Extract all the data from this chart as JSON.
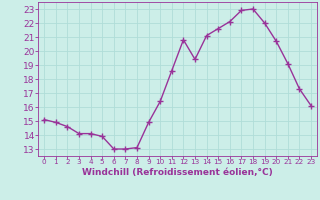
{
  "x": [
    0,
    1,
    2,
    3,
    4,
    5,
    6,
    7,
    8,
    9,
    10,
    11,
    12,
    13,
    14,
    15,
    16,
    17,
    18,
    19,
    20,
    21,
    22,
    23
  ],
  "y": [
    15.1,
    14.9,
    14.6,
    14.1,
    14.1,
    13.9,
    13.0,
    13.0,
    13.1,
    14.9,
    16.4,
    18.6,
    20.8,
    19.4,
    21.1,
    21.6,
    22.1,
    22.9,
    23.0,
    22.0,
    20.7,
    19.1,
    17.3,
    16.1
  ],
  "line_color": "#993399",
  "marker": "+",
  "marker_size": 4,
  "marker_linewidth": 1.0,
  "xlabel": "Windchill (Refroidissement éolien,°C)",
  "xlabel_fontsize": 6.5,
  "ylim": [
    12.5,
    23.5
  ],
  "xlim": [
    -0.5,
    23.5
  ],
  "yticks": [
    13,
    14,
    15,
    16,
    17,
    18,
    19,
    20,
    21,
    22,
    23
  ],
  "xticks": [
    0,
    1,
    2,
    3,
    4,
    5,
    6,
    7,
    8,
    9,
    10,
    11,
    12,
    13,
    14,
    15,
    16,
    17,
    18,
    19,
    20,
    21,
    22,
    23
  ],
  "grid_color": "#b0ddd8",
  "bg_color": "#cceee8",
  "tick_color": "#993399",
  "ytick_fontsize": 6.5,
  "xtick_fontsize": 5.2,
  "line_width": 1.0
}
